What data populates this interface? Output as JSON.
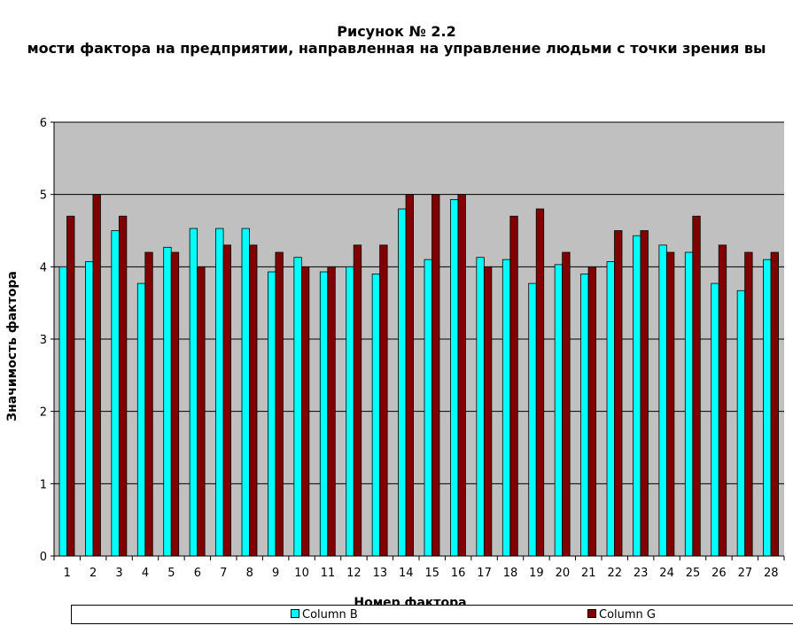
{
  "chart_data": {
    "type": "bar",
    "title": "Рисунок № 2.2",
    "subtitle": "мости фактора  на предприятии, направленная  на управление людьми с точки зрения вы",
    "xlabel": "Номер фактора",
    "ylabel": "Значимость фактора",
    "ylim": [
      0,
      6
    ],
    "yticks": [
      "0",
      "1",
      "2",
      "3",
      "4",
      "5",
      "6"
    ],
    "grid": true,
    "plot_background": "#c0c0c0",
    "legend_position": "bottom",
    "categories": [
      "1",
      "2",
      "3",
      "4",
      "5",
      "6",
      "7",
      "8",
      "9",
      "10",
      "11",
      "12",
      "13",
      "14",
      "15",
      "16",
      "17",
      "18",
      "19",
      "20",
      "21",
      "22",
      "23",
      "24",
      "25",
      "26",
      "27",
      "28"
    ],
    "series": [
      {
        "name": "Column B",
        "color": "#00ffff",
        "values": [
          4.0,
          4.07,
          4.5,
          3.77,
          4.27,
          4.53,
          4.53,
          4.53,
          3.93,
          4.13,
          3.93,
          4.0,
          3.9,
          4.8,
          4.1,
          4.93,
          4.13,
          4.1,
          3.77,
          4.03,
          3.9,
          4.07,
          4.43,
          4.3,
          4.2,
          3.77,
          3.67,
          4.1
        ]
      },
      {
        "name": "Column G",
        "color": "#800000",
        "values": [
          4.7,
          5.0,
          4.7,
          4.2,
          4.2,
          4.0,
          4.3,
          4.3,
          4.2,
          4.0,
          4.0,
          4.3,
          4.3,
          5.0,
          5.0,
          5.0,
          4.0,
          4.7,
          4.8,
          4.2,
          4.0,
          4.5,
          4.5,
          4.2,
          4.7,
          4.3,
          4.2,
          4.2
        ]
      }
    ]
  }
}
